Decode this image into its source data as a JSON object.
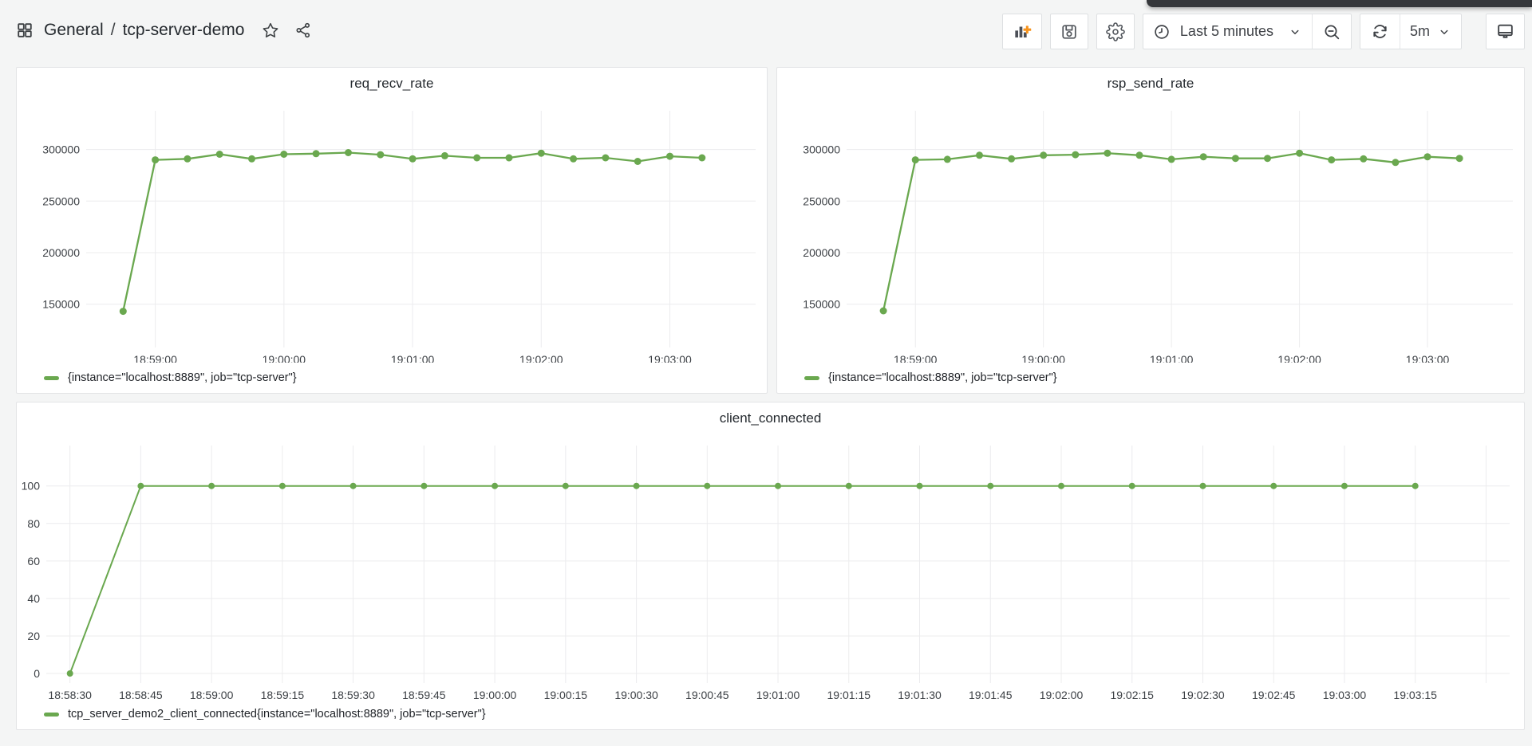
{
  "header": {
    "breadcrumb": {
      "folder": "General",
      "separator": "/",
      "dashboard": "tcp-server-demo"
    },
    "toolbar": {
      "add_panel": "add-panel",
      "save": "save-dashboard",
      "settings": "dashboard-settings",
      "time_picker_label": "Last 5 minutes",
      "refresh_interval": "5m"
    }
  },
  "colors": {
    "series_green": "#6aa84f",
    "accent_orange": "#f7941e",
    "grid": "#ececee",
    "axis_text": "#3c4045"
  },
  "chart_data": [
    {
      "type": "line",
      "title": "req_recv_rate",
      "legend": "{instance=\"localhost:8889\", job=\"tcp-server\"}",
      "y_ticks": [
        150000,
        200000,
        250000,
        300000
      ],
      "y_domain": [
        111000,
        333000
      ],
      "x_domain": [
        "18:58:30",
        "19:03:40"
      ],
      "x_ticks": [
        "18:59:00",
        "19:00:00",
        "19:01:00",
        "19:02:00",
        "19:03:00"
      ],
      "x_grid_extra": [],
      "points": [
        [
          "18:58:45",
          143000
        ],
        [
          "18:59:00",
          290000
        ],
        [
          "18:59:15",
          291000
        ],
        [
          "18:59:30",
          295500
        ],
        [
          "18:59:45",
          291000
        ],
        [
          "19:00:00",
          295500
        ],
        [
          "19:00:15",
          296000
        ],
        [
          "19:00:30",
          297000
        ],
        [
          "19:00:45",
          295000
        ],
        [
          "19:01:00",
          291000
        ],
        [
          "19:01:15",
          294000
        ],
        [
          "19:01:30",
          292000
        ],
        [
          "19:01:45",
          292000
        ],
        [
          "19:02:00",
          296500
        ],
        [
          "19:02:15",
          291000
        ],
        [
          "19:02:30",
          292000
        ],
        [
          "19:02:45",
          288500
        ],
        [
          "19:03:00",
          293500
        ],
        [
          "19:03:15",
          292000
        ]
      ]
    },
    {
      "type": "line",
      "title": "rsp_send_rate",
      "legend": "{instance=\"localhost:8889\", job=\"tcp-server\"}",
      "y_ticks": [
        150000,
        200000,
        250000,
        300000
      ],
      "y_domain": [
        111000,
        333000
      ],
      "x_domain": [
        "18:58:30",
        "19:03:40"
      ],
      "x_ticks": [
        "18:59:00",
        "19:00:00",
        "19:01:00",
        "19:02:00",
        "19:03:00"
      ],
      "x_grid_extra": [],
      "points": [
        [
          "18:58:45",
          143500
        ],
        [
          "18:59:00",
          290000
        ],
        [
          "18:59:15",
          290500
        ],
        [
          "18:59:30",
          294500
        ],
        [
          "18:59:45",
          291000
        ],
        [
          "19:00:00",
          294500
        ],
        [
          "19:00:15",
          295000
        ],
        [
          "19:00:30",
          296500
        ],
        [
          "19:00:45",
          294500
        ],
        [
          "19:01:00",
          290500
        ],
        [
          "19:01:15",
          293000
        ],
        [
          "19:01:30",
          291500
        ],
        [
          "19:01:45",
          291500
        ],
        [
          "19:02:00",
          296500
        ],
        [
          "19:02:15",
          290000
        ],
        [
          "19:02:30",
          291000
        ],
        [
          "19:02:45",
          287500
        ],
        [
          "19:03:00",
          293000
        ],
        [
          "19:03:15",
          291500
        ]
      ]
    },
    {
      "type": "line",
      "title": "client_connected",
      "legend": "tcp_server_demo2_client_connected{instance=\"localhost:8889\", job=\"tcp-server\"}",
      "y_ticks": [
        0,
        20,
        40,
        60,
        80,
        100
      ],
      "y_domain": [
        -3.4,
        119
      ],
      "x_domain": [
        "18:58:26",
        "19:03:35"
      ],
      "x_ticks": [
        "18:58:30",
        "18:58:45",
        "18:59:00",
        "18:59:15",
        "18:59:30",
        "18:59:45",
        "19:00:00",
        "19:00:15",
        "19:00:30",
        "19:00:45",
        "19:01:00",
        "19:01:15",
        "19:01:30",
        "19:01:45",
        "19:02:00",
        "19:02:15",
        "19:02:30",
        "19:02:45",
        "19:03:00",
        "19:03:15"
      ],
      "x_grid_extra": [
        "19:03:30"
      ],
      "points": [
        [
          "18:58:30",
          0
        ],
        [
          "18:58:45",
          100
        ],
        [
          "18:59:00",
          100
        ],
        [
          "18:59:15",
          100
        ],
        [
          "18:59:30",
          100
        ],
        [
          "18:59:45",
          100
        ],
        [
          "19:00:00",
          100
        ],
        [
          "19:00:15",
          100
        ],
        [
          "19:00:30",
          100
        ],
        [
          "19:00:45",
          100
        ],
        [
          "19:01:00",
          100
        ],
        [
          "19:01:15",
          100
        ],
        [
          "19:01:30",
          100
        ],
        [
          "19:01:45",
          100
        ],
        [
          "19:02:00",
          100
        ],
        [
          "19:02:15",
          100
        ],
        [
          "19:02:30",
          100
        ],
        [
          "19:02:45",
          100
        ],
        [
          "19:03:00",
          100
        ],
        [
          "19:03:15",
          100
        ]
      ]
    }
  ]
}
